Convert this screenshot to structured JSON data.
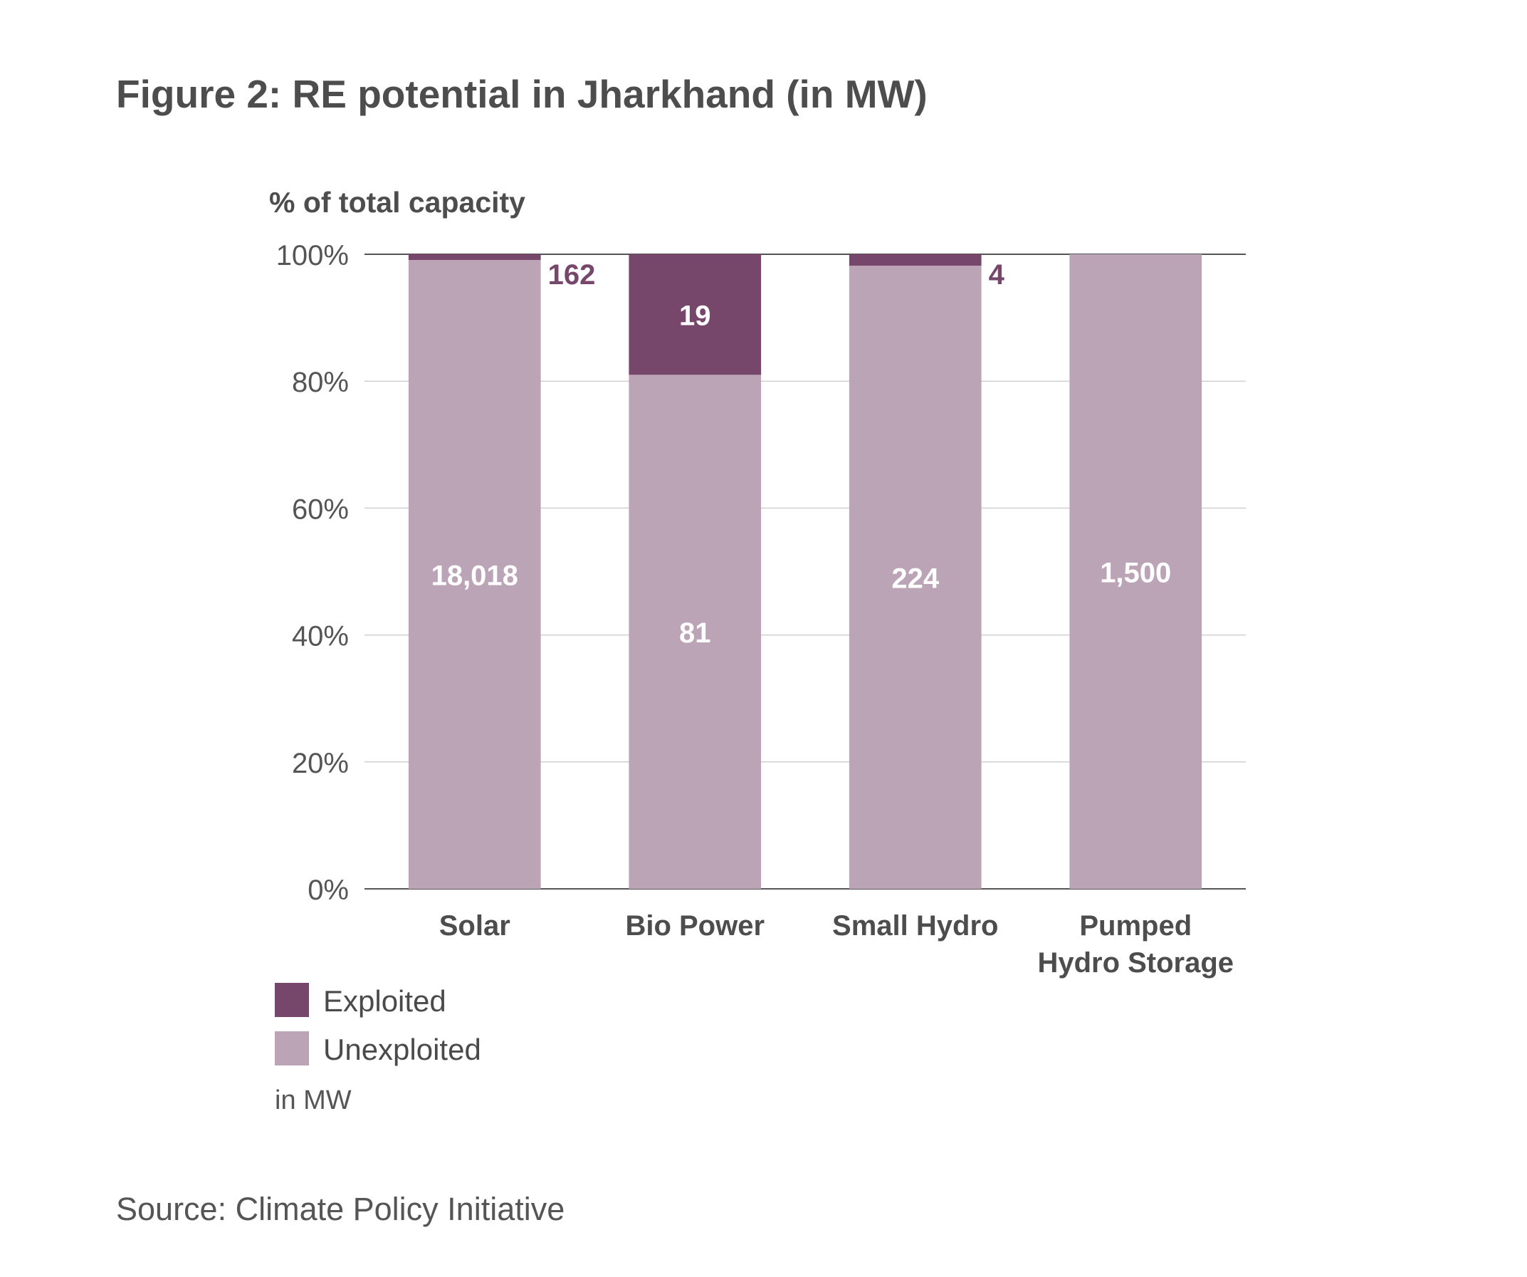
{
  "figure": {
    "title": "Figure 2: RE potential in Jharkhand (in MW)",
    "source": "Source: Climate Policy Initiative",
    "unit_note": "in MW"
  },
  "chart_data": {
    "type": "bar",
    "stacked": true,
    "ylabel": "% of total capacity",
    "ylim": [
      0,
      100
    ],
    "y_ticks": [
      "0%",
      "20%",
      "40%",
      "60%",
      "80%",
      "100%"
    ],
    "grid": true,
    "categories": [
      "Solar",
      "Bio Power",
      "Small Hydro",
      "Pumped Hydro Storage"
    ],
    "category_lines": [
      [
        "Solar"
      ],
      [
        "Bio Power"
      ],
      [
        "Small Hydro"
      ],
      [
        "Pumped",
        "Hydro Storage"
      ]
    ],
    "series": [
      {
        "name": "Unexploited",
        "color": "#bca4b7",
        "values": [
          99.1,
          81,
          98.2,
          100
        ],
        "labels": [
          "18,018",
          "81",
          "224",
          "1,500"
        ]
      },
      {
        "name": "Exploited",
        "color": "#77466b",
        "values": [
          0.9,
          19,
          1.8,
          0
        ],
        "labels": [
          "162",
          "19",
          "4",
          ""
        ]
      }
    ],
    "legend": {
      "position": "bottom-left",
      "items": [
        {
          "label": "Exploited",
          "color": "#77466b"
        },
        {
          "label": "Unexploited",
          "color": "#bca4b7"
        }
      ]
    }
  }
}
